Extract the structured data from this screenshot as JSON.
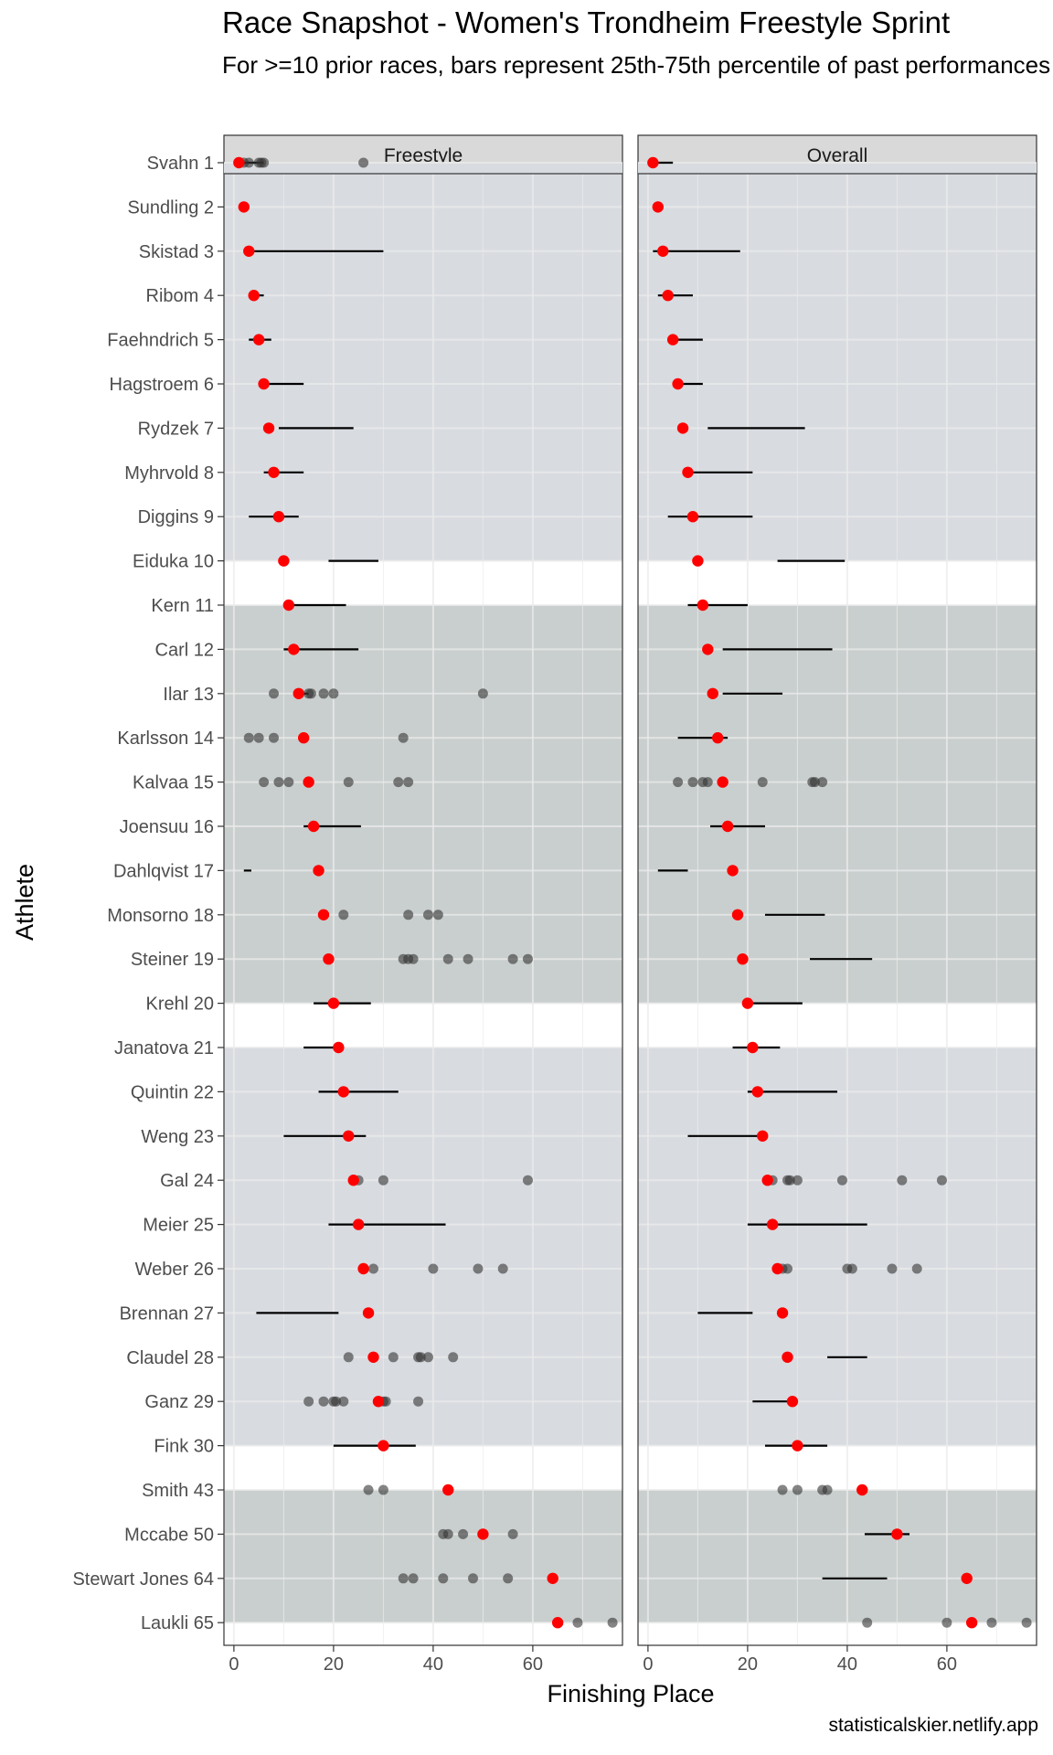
{
  "title": "Race Snapshot -  Women's Trondheim Freestyle Sprint",
  "subtitle": "For >=10 prior races, bars represent 25th-75th percentile of past performances",
  "caption": "statisticalskier.netlify.app",
  "chart_data": {
    "type": "scatter",
    "xlabel": "Finishing Place",
    "ylabel": "Athlete",
    "xlim": [
      -2,
      78
    ],
    "xticks": [
      0,
      20,
      40,
      60
    ],
    "grid": true,
    "colors": {
      "panel_strip": "#d9d9d9",
      "band_light": "#d8dbe0",
      "band_dark": "#c9cfce",
      "current_point": "#ff0000",
      "past_point": "#333333"
    },
    "facets": [
      "Freestyle",
      "Overall"
    ],
    "athletes": [
      "Svahn 1",
      "Sundling 2",
      "Skistad 3",
      "Ribom 4",
      "Faehndrich 5",
      "Hagstroem 6",
      "Rydzek 7",
      "Myhrvold 8",
      "Diggins 9",
      "Eiduka 10",
      "Kern 11",
      "Carl 12",
      "Ilar 13",
      "Karlsson 14",
      "Kalvaa 15",
      "Joensuu 16",
      "Dahlqvist 17",
      "Monsorno 18",
      "Steiner 19",
      "Krehl 20",
      "Janatova 21",
      "Quintin 22",
      "Weng 23",
      "Gal 24",
      "Meier 25",
      "Weber 26",
      "Brennan 27",
      "Claudel 28",
      "Ganz 29",
      "Fink 30",
      "Smith 43",
      "Mccabe 50",
      "Stewart Jones 64",
      "Laukli 65"
    ],
    "bands": [
      {
        "from": "Svahn 1",
        "to": "Eiduka 10",
        "shade": "light"
      },
      {
        "from": "Kern 11",
        "to": "Krehl 20",
        "shade": "dark"
      },
      {
        "from": "Janatova 21",
        "to": "Fink 30",
        "shade": "light"
      },
      {
        "from": "Smith 43",
        "to": "Laukli 65",
        "shade": "dark"
      }
    ],
    "current_place": [
      1,
      2,
      3,
      4,
      5,
      6,
      7,
      8,
      9,
      10,
      11,
      12,
      13,
      14,
      15,
      16,
      17,
      18,
      19,
      20,
      21,
      22,
      23,
      24,
      25,
      26,
      27,
      28,
      29,
      30,
      43,
      50,
      64,
      65
    ],
    "panels": [
      {
        "name": "Freestyle",
        "iqr": [
          [
            1,
            6
          ],
          null,
          [
            3,
            30
          ],
          [
            3,
            6
          ],
          [
            3,
            7.5
          ],
          [
            5,
            14
          ],
          [
            9,
            24
          ],
          [
            6,
            14
          ],
          [
            3,
            13
          ],
          [
            19,
            29
          ],
          [
            10,
            22.5
          ],
          [
            10,
            25
          ],
          [
            12,
            15
          ],
          null,
          null,
          [
            14,
            25.5
          ],
          [
            2,
            3.5
          ],
          null,
          null,
          [
            16,
            27.5
          ],
          [
            14,
            21.5
          ],
          [
            17,
            33
          ],
          [
            10,
            26.5
          ],
          [
            24,
            25
          ],
          [
            19,
            42.5
          ],
          [
            25,
            26
          ],
          [
            4.5,
            21
          ],
          null,
          null,
          [
            20,
            36.5
          ],
          null,
          null,
          null,
          null
        ],
        "past": [
          [
            2,
            3,
            5,
            5.5,
            6,
            26
          ],
          [],
          [],
          [],
          [],
          [],
          [],
          [],
          [],
          [],
          [],
          [],
          [
            8,
            13,
            15,
            15.5,
            18,
            20,
            50
          ],
          [
            3,
            5,
            8,
            34
          ],
          [
            6,
            9,
            11,
            23,
            33,
            35
          ],
          [],
          [],
          [
            22,
            35,
            39,
            41
          ],
          [
            34,
            35,
            36,
            43,
            47,
            56,
            59
          ],
          [],
          [],
          [],
          [],
          [
            25,
            30,
            59
          ],
          [],
          [
            28,
            40,
            49,
            54
          ],
          [],
          [
            23,
            32,
            37,
            37.5,
            39,
            44
          ],
          [
            15,
            18,
            20,
            20.5,
            22,
            30,
            30.5,
            37
          ],
          [],
          [
            27,
            30
          ],
          [
            42,
            43,
            46,
            56
          ],
          [
            34,
            36,
            42,
            48,
            55
          ],
          [
            69,
            76
          ]
        ]
      },
      {
        "name": "Overall",
        "iqr": [
          [
            1,
            5
          ],
          [
            1,
            3
          ],
          [
            1,
            18.5
          ],
          [
            2,
            9
          ],
          [
            4,
            11
          ],
          [
            5,
            11
          ],
          [
            12,
            31.5
          ],
          [
            8,
            21
          ],
          [
            4,
            21
          ],
          [
            26,
            39.5
          ],
          [
            8,
            20
          ],
          [
            15,
            37
          ],
          [
            15,
            27
          ],
          [
            6,
            16
          ],
          null,
          [
            12.5,
            23.5
          ],
          [
            2,
            8
          ],
          [
            23.5,
            35.5
          ],
          [
            32.5,
            45
          ],
          [
            20,
            31
          ],
          [
            17,
            26.5
          ],
          [
            20,
            38
          ],
          [
            8,
            23
          ],
          null,
          [
            20,
            44
          ],
          null,
          [
            10,
            21
          ],
          [
            36,
            44
          ],
          [
            21,
            30
          ],
          [
            23.5,
            36
          ],
          null,
          [
            43.5,
            52.5
          ],
          [
            35,
            48
          ],
          null
        ],
        "past": [
          [],
          [],
          [],
          [],
          [],
          [],
          [],
          [],
          [],
          [],
          [],
          [],
          [],
          [],
          [
            6,
            9,
            11,
            12,
            15,
            23,
            33,
            33.5,
            35
          ],
          [],
          [],
          [],
          [],
          [],
          [],
          [],
          [],
          [
            25,
            28,
            28.5,
            30,
            39,
            51,
            59
          ],
          [],
          [
            27,
            28,
            40,
            41,
            49,
            54
          ],
          [],
          [],
          [],
          [],
          [
            27,
            30,
            35,
            36
          ],
          [
            50
          ],
          [],
          [
            44,
            60,
            69,
            76
          ]
        ]
      }
    ]
  }
}
